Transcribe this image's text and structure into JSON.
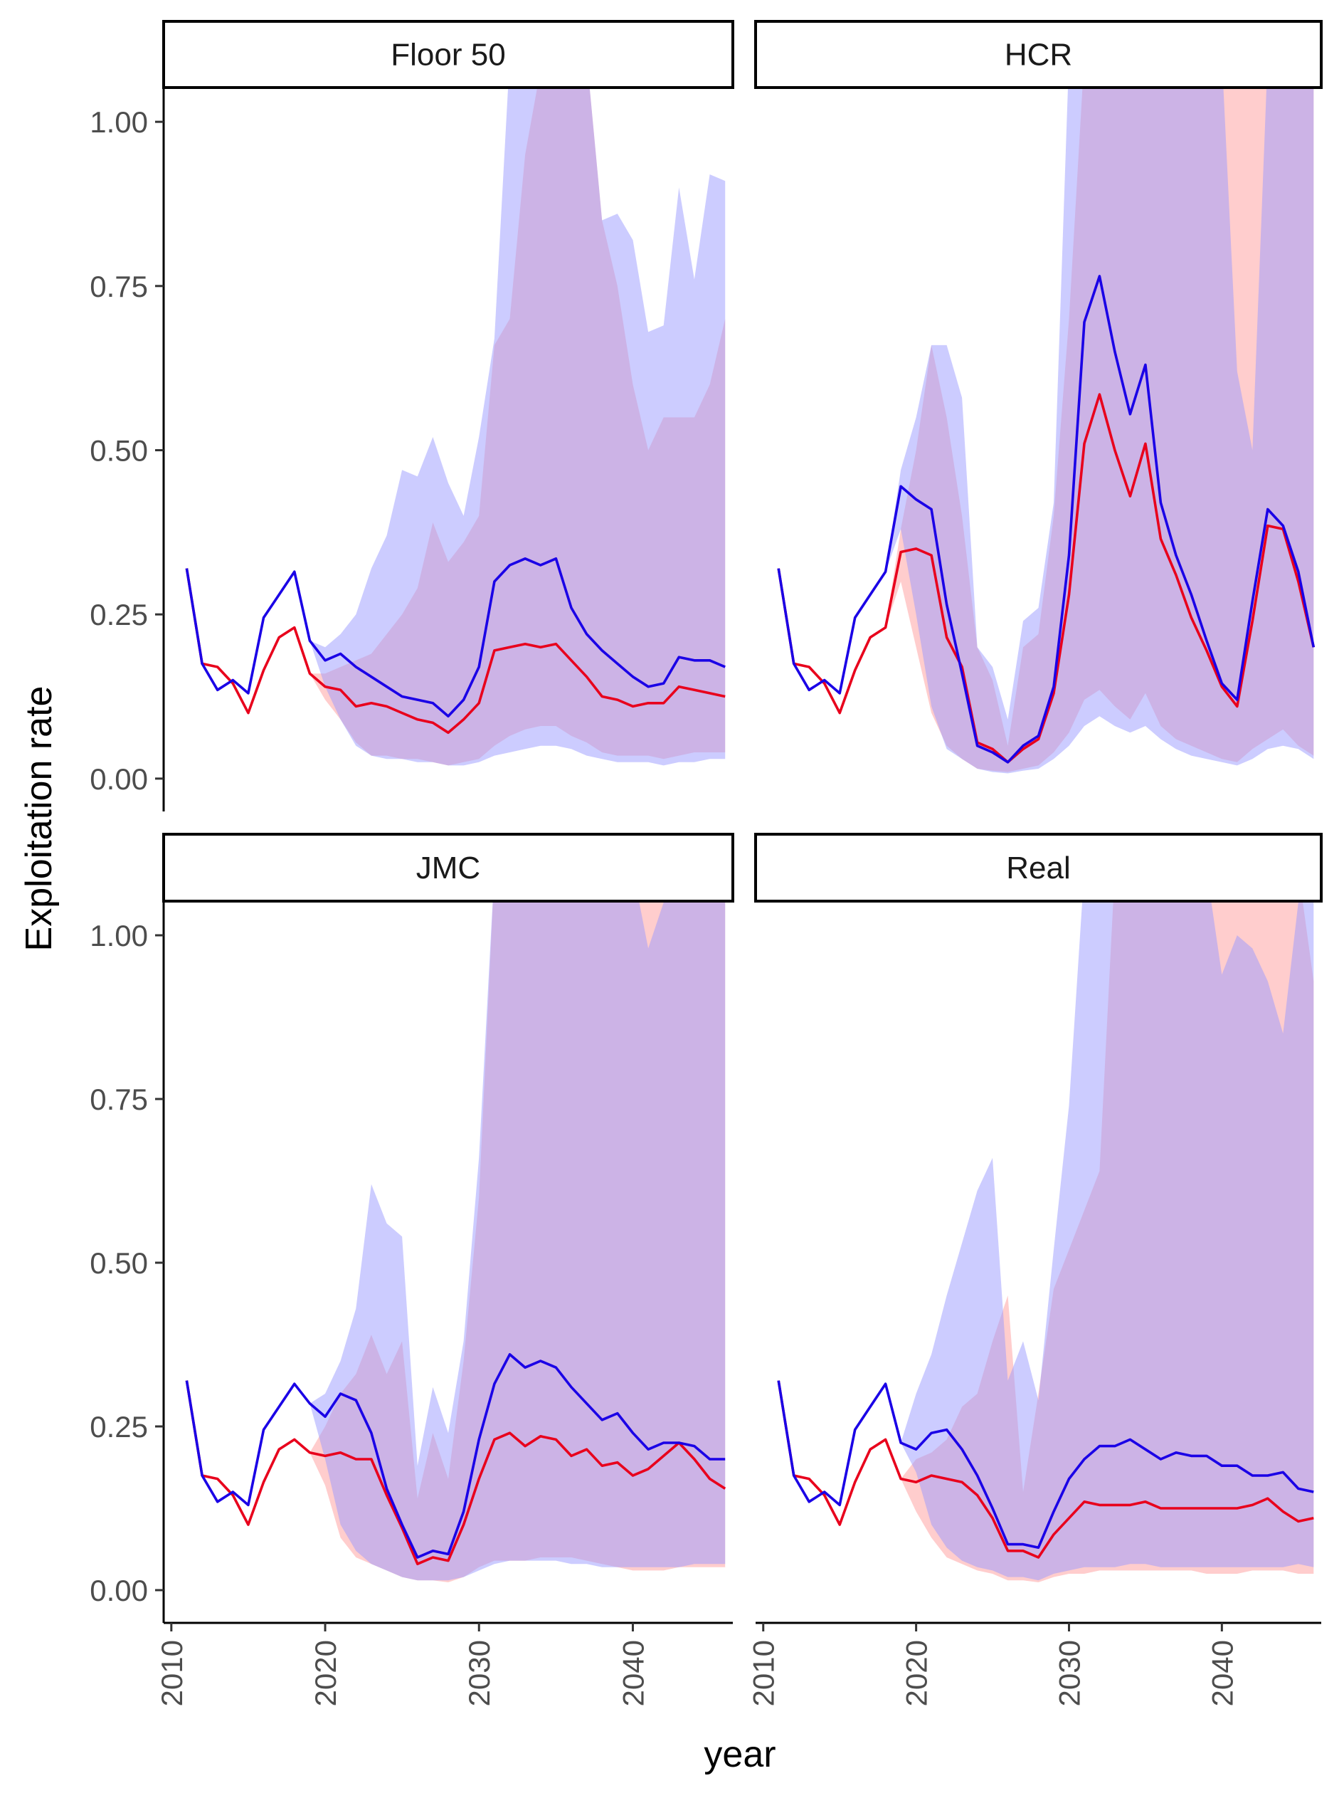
{
  "chart_data": {
    "type": "area",
    "layout": "facet-grid 2x2",
    "xlabel": "year",
    "ylabel": "Exploitation rate",
    "xlim": [
      2009.5,
      2046.5
    ],
    "ylim": [
      -0.05,
      1.05
    ],
    "x_ticks": [
      2010,
      2020,
      2030,
      2040
    ],
    "y_ticks": [
      0.0,
      0.25,
      0.5,
      0.75,
      1.0
    ],
    "y_tick_labels": [
      "0.00",
      "0.25",
      "0.50",
      "0.75",
      "1.00"
    ],
    "grid": false,
    "legend": "none",
    "colors": {
      "red_line": "#e8001c",
      "blue_line": "#1a00e6",
      "red_ribbon": "#ff9c9c",
      "blue_ribbon": "#9999ff",
      "overlap": "#c9a3d6"
    },
    "x_years": [
      2011,
      2012,
      2013,
      2014,
      2015,
      2016,
      2017,
      2018,
      2019,
      2020,
      2021,
      2022,
      2023,
      2024,
      2025,
      2026,
      2027,
      2028,
      2029,
      2030,
      2031,
      2032,
      2033,
      2034,
      2035,
      2036,
      2037,
      2038,
      2039,
      2040,
      2041,
      2042,
      2043,
      2044,
      2045,
      2046
    ],
    "panels": [
      {
        "title": "Floor 50",
        "red_mid": [
          0.32,
          0.175,
          0.17,
          0.145,
          0.1,
          0.165,
          0.215,
          0.23,
          0.16,
          0.14,
          0.135,
          0.11,
          0.115,
          0.11,
          0.1,
          0.09,
          0.085,
          0.07,
          0.09,
          0.115,
          0.195,
          0.2,
          0.205,
          0.2,
          0.205,
          0.18,
          0.155,
          0.125,
          0.12,
          0.11,
          0.115,
          0.115,
          0.14,
          0.135,
          0.13,
          0.125
        ],
        "red_lower": [
          0.32,
          0.175,
          0.17,
          0.145,
          0.1,
          0.165,
          0.215,
          0.23,
          0.16,
          0.12,
          0.09,
          0.055,
          0.035,
          0.035,
          0.03,
          0.03,
          0.025,
          0.02,
          0.025,
          0.03,
          0.05,
          0.065,
          0.075,
          0.08,
          0.08,
          0.065,
          0.055,
          0.04,
          0.035,
          0.035,
          0.035,
          0.03,
          0.035,
          0.04,
          0.04,
          0.04
        ],
        "red_upper": [
          0.32,
          0.175,
          0.17,
          0.145,
          0.1,
          0.165,
          0.215,
          0.23,
          0.16,
          0.16,
          0.17,
          0.18,
          0.19,
          0.22,
          0.25,
          0.29,
          0.39,
          0.33,
          0.36,
          0.4,
          0.66,
          0.7,
          0.95,
          1.08,
          1.1,
          1.1,
          1.1,
          0.85,
          0.75,
          0.6,
          0.5,
          0.55,
          0.55,
          0.55,
          0.6,
          0.7
        ],
        "blue_mid": [
          0.32,
          0.175,
          0.135,
          0.15,
          0.13,
          0.245,
          0.28,
          0.315,
          0.21,
          0.18,
          0.19,
          0.17,
          0.155,
          0.14,
          0.125,
          0.12,
          0.115,
          0.095,
          0.12,
          0.17,
          0.3,
          0.325,
          0.335,
          0.325,
          0.335,
          0.26,
          0.22,
          0.195,
          0.175,
          0.155,
          0.14,
          0.145,
          0.185,
          0.18,
          0.18,
          0.17
        ],
        "blue_lower": [
          0.32,
          0.175,
          0.135,
          0.15,
          0.13,
          0.245,
          0.28,
          0.315,
          0.21,
          0.14,
          0.09,
          0.05,
          0.035,
          0.03,
          0.03,
          0.025,
          0.025,
          0.02,
          0.02,
          0.025,
          0.035,
          0.04,
          0.045,
          0.05,
          0.05,
          0.045,
          0.035,
          0.03,
          0.025,
          0.025,
          0.025,
          0.02,
          0.025,
          0.025,
          0.03,
          0.03
        ],
        "blue_upper": [
          0.32,
          0.175,
          0.135,
          0.15,
          0.13,
          0.245,
          0.28,
          0.315,
          0.21,
          0.2,
          0.22,
          0.25,
          0.32,
          0.37,
          0.47,
          0.46,
          0.52,
          0.45,
          0.4,
          0.52,
          0.67,
          1.1,
          1.1,
          1.1,
          1.1,
          1.1,
          1.1,
          0.85,
          0.86,
          0.82,
          0.68,
          0.69,
          0.9,
          0.76,
          0.92,
          0.91
        ]
      },
      {
        "title": "HCR",
        "red_mid": [
          0.32,
          0.175,
          0.17,
          0.145,
          0.1,
          0.165,
          0.215,
          0.23,
          0.345,
          0.35,
          0.34,
          0.215,
          0.17,
          0.055,
          0.045,
          0.025,
          0.045,
          0.06,
          0.13,
          0.28,
          0.51,
          0.585,
          0.5,
          0.43,
          0.51,
          0.365,
          0.31,
          0.245,
          0.195,
          0.14,
          0.11,
          0.24,
          0.385,
          0.38,
          0.3,
          0.2
        ],
        "red_lower": [
          0.32,
          0.175,
          0.17,
          0.145,
          0.1,
          0.165,
          0.215,
          0.23,
          0.3,
          0.2,
          0.1,
          0.05,
          0.03,
          0.015,
          0.012,
          0.01,
          0.015,
          0.02,
          0.04,
          0.07,
          0.12,
          0.135,
          0.11,
          0.09,
          0.13,
          0.08,
          0.06,
          0.05,
          0.04,
          0.03,
          0.025,
          0.045,
          0.06,
          0.075,
          0.05,
          0.035
        ],
        "red_upper": [
          0.32,
          0.175,
          0.17,
          0.145,
          0.1,
          0.165,
          0.215,
          0.23,
          0.38,
          0.5,
          0.66,
          0.55,
          0.4,
          0.2,
          0.15,
          0.05,
          0.2,
          0.22,
          0.4,
          0.7,
          1.1,
          1.1,
          1.1,
          1.1,
          1.1,
          1.1,
          1.1,
          1.1,
          1.1,
          1.1,
          1.1,
          1.1,
          1.1,
          1.1,
          1.1,
          1.1
        ],
        "blue_mid": [
          0.32,
          0.175,
          0.135,
          0.15,
          0.13,
          0.245,
          0.28,
          0.315,
          0.445,
          0.425,
          0.41,
          0.265,
          0.16,
          0.05,
          0.04,
          0.025,
          0.05,
          0.065,
          0.14,
          0.34,
          0.695,
          0.765,
          0.65,
          0.555,
          0.63,
          0.42,
          0.34,
          0.28,
          0.21,
          0.145,
          0.12,
          0.27,
          0.41,
          0.385,
          0.315,
          0.2
        ],
        "blue_lower": [
          0.32,
          0.175,
          0.135,
          0.15,
          0.13,
          0.245,
          0.28,
          0.315,
          0.38,
          0.25,
          0.11,
          0.045,
          0.03,
          0.015,
          0.01,
          0.008,
          0.012,
          0.015,
          0.03,
          0.05,
          0.08,
          0.095,
          0.08,
          0.07,
          0.08,
          0.06,
          0.045,
          0.035,
          0.03,
          0.025,
          0.02,
          0.03,
          0.045,
          0.05,
          0.045,
          0.03
        ],
        "blue_upper": [
          0.32,
          0.175,
          0.135,
          0.15,
          0.13,
          0.245,
          0.28,
          0.315,
          0.47,
          0.55,
          0.66,
          0.66,
          0.58,
          0.2,
          0.17,
          0.09,
          0.24,
          0.26,
          0.42,
          1.1,
          1.1,
          1.1,
          1.1,
          1.1,
          1.1,
          1.1,
          1.1,
          1.1,
          1.1,
          1.1,
          0.62,
          0.5,
          1.1,
          1.1,
          1.1,
          1.1
        ]
      },
      {
        "title": "JMC",
        "red_mid": [
          0.32,
          0.175,
          0.17,
          0.145,
          0.1,
          0.165,
          0.215,
          0.23,
          0.21,
          0.205,
          0.21,
          0.2,
          0.2,
          0.145,
          0.095,
          0.04,
          0.05,
          0.045,
          0.1,
          0.17,
          0.23,
          0.24,
          0.22,
          0.235,
          0.23,
          0.205,
          0.215,
          0.19,
          0.195,
          0.175,
          0.185,
          0.205,
          0.225,
          0.2,
          0.17,
          0.155
        ],
        "red_lower": [
          0.32,
          0.175,
          0.17,
          0.145,
          0.1,
          0.165,
          0.215,
          0.23,
          0.21,
          0.16,
          0.08,
          0.05,
          0.04,
          0.03,
          0.02,
          0.015,
          0.015,
          0.012,
          0.02,
          0.035,
          0.045,
          0.045,
          0.045,
          0.05,
          0.05,
          0.05,
          0.045,
          0.04,
          0.035,
          0.03,
          0.03,
          0.03,
          0.035,
          0.035,
          0.035,
          0.035
        ],
        "red_upper": [
          0.32,
          0.175,
          0.17,
          0.145,
          0.1,
          0.165,
          0.215,
          0.23,
          0.21,
          0.25,
          0.3,
          0.33,
          0.39,
          0.33,
          0.38,
          0.14,
          0.24,
          0.17,
          0.35,
          0.6,
          1.1,
          1.1,
          1.1,
          1.1,
          1.1,
          1.1,
          1.1,
          1.1,
          1.1,
          1.1,
          1.1,
          1.1,
          1.1,
          1.1,
          1.1,
          1.1
        ],
        "blue_mid": [
          0.32,
          0.175,
          0.135,
          0.15,
          0.13,
          0.245,
          0.28,
          0.315,
          0.285,
          0.265,
          0.3,
          0.29,
          0.24,
          0.155,
          0.1,
          0.05,
          0.06,
          0.055,
          0.12,
          0.23,
          0.315,
          0.36,
          0.34,
          0.35,
          0.34,
          0.31,
          0.285,
          0.26,
          0.27,
          0.24,
          0.215,
          0.225,
          0.225,
          0.22,
          0.2,
          0.2
        ],
        "blue_lower": [
          0.32,
          0.175,
          0.135,
          0.15,
          0.13,
          0.245,
          0.28,
          0.315,
          0.285,
          0.2,
          0.1,
          0.06,
          0.04,
          0.03,
          0.02,
          0.015,
          0.015,
          0.015,
          0.02,
          0.03,
          0.04,
          0.045,
          0.045,
          0.045,
          0.045,
          0.04,
          0.04,
          0.035,
          0.035,
          0.035,
          0.035,
          0.035,
          0.035,
          0.04,
          0.04,
          0.04
        ],
        "blue_upper": [
          0.32,
          0.175,
          0.135,
          0.15,
          0.13,
          0.245,
          0.28,
          0.315,
          0.285,
          0.3,
          0.35,
          0.43,
          0.62,
          0.56,
          0.54,
          0.19,
          0.31,
          0.24,
          0.38,
          0.66,
          1.1,
          1.1,
          1.1,
          1.1,
          1.1,
          1.1,
          1.1,
          1.1,
          1.1,
          1.1,
          0.98,
          1.05,
          1.1,
          1.1,
          1.1,
          1.1
        ]
      },
      {
        "title": "Real",
        "red_mid": [
          0.32,
          0.175,
          0.17,
          0.145,
          0.1,
          0.165,
          0.215,
          0.23,
          0.17,
          0.165,
          0.175,
          0.17,
          0.165,
          0.145,
          0.11,
          0.06,
          0.06,
          0.05,
          0.085,
          0.11,
          0.135,
          0.13,
          0.13,
          0.13,
          0.135,
          0.125,
          0.125,
          0.125,
          0.125,
          0.125,
          0.125,
          0.13,
          0.14,
          0.12,
          0.105,
          0.11
        ],
        "red_lower": [
          0.32,
          0.175,
          0.17,
          0.145,
          0.1,
          0.165,
          0.215,
          0.23,
          0.17,
          0.12,
          0.08,
          0.05,
          0.04,
          0.03,
          0.025,
          0.015,
          0.015,
          0.012,
          0.02,
          0.025,
          0.025,
          0.03,
          0.03,
          0.03,
          0.03,
          0.03,
          0.03,
          0.03,
          0.025,
          0.025,
          0.025,
          0.03,
          0.03,
          0.03,
          0.025,
          0.025
        ],
        "red_upper": [
          0.32,
          0.175,
          0.17,
          0.145,
          0.1,
          0.165,
          0.215,
          0.23,
          0.17,
          0.2,
          0.21,
          0.23,
          0.28,
          0.3,
          0.38,
          0.45,
          0.15,
          0.3,
          0.46,
          0.52,
          0.58,
          0.64,
          1.1,
          1.1,
          1.1,
          1.1,
          1.1,
          1.1,
          1.1,
          1.1,
          1.1,
          1.1,
          1.1,
          1.1,
          1.1,
          0.93
        ],
        "blue_mid": [
          0.32,
          0.175,
          0.135,
          0.15,
          0.13,
          0.245,
          0.28,
          0.315,
          0.225,
          0.215,
          0.24,
          0.245,
          0.215,
          0.175,
          0.125,
          0.07,
          0.07,
          0.065,
          0.12,
          0.17,
          0.2,
          0.22,
          0.22,
          0.23,
          0.215,
          0.2,
          0.21,
          0.205,
          0.205,
          0.19,
          0.19,
          0.175,
          0.175,
          0.18,
          0.155,
          0.15
        ],
        "blue_lower": [
          0.32,
          0.175,
          0.135,
          0.15,
          0.13,
          0.245,
          0.28,
          0.315,
          0.225,
          0.18,
          0.1,
          0.065,
          0.045,
          0.035,
          0.03,
          0.02,
          0.02,
          0.015,
          0.025,
          0.03,
          0.035,
          0.035,
          0.035,
          0.04,
          0.04,
          0.035,
          0.035,
          0.035,
          0.035,
          0.035,
          0.035,
          0.035,
          0.035,
          0.035,
          0.04,
          0.035
        ],
        "blue_upper": [
          0.32,
          0.175,
          0.135,
          0.15,
          0.13,
          0.245,
          0.28,
          0.315,
          0.225,
          0.3,
          0.36,
          0.45,
          0.53,
          0.61,
          0.66,
          0.32,
          0.38,
          0.29,
          0.52,
          0.74,
          1.1,
          1.1,
          1.1,
          1.1,
          1.1,
          1.1,
          1.1,
          1.1,
          1.1,
          0.94,
          1.0,
          0.98,
          0.93,
          0.85,
          1.05,
          1.1
        ]
      }
    ]
  }
}
